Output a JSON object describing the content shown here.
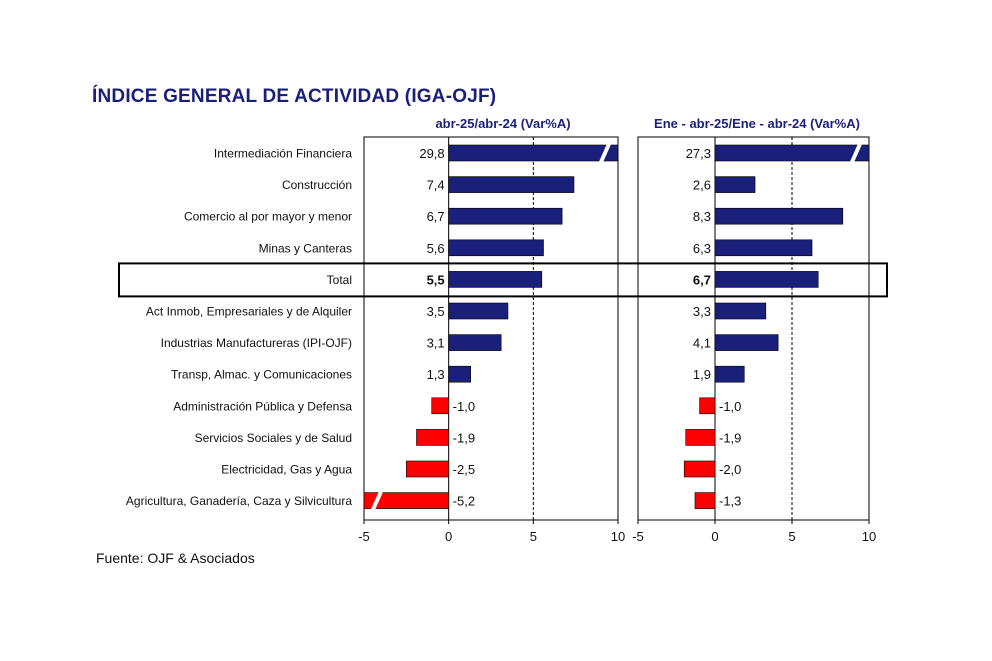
{
  "title": "ÍNDICE GENERAL DE ACTIVIDAD (IGA-OJF)",
  "source": "Fuente: OJF & Asociados",
  "colors": {
    "positive": "#1a1f7a",
    "negative": "#ff0000",
    "title": "#1a1f7a"
  },
  "chart_data": [
    {
      "type": "bar",
      "orientation": "horizontal",
      "title": "abr-25/abr-24  (Var%A)",
      "categories": [
        "Intermediación Financiera",
        "Construcción",
        "Comercio al por mayor y menor",
        "Minas y Canteras",
        "Total",
        "Act Inmob, Empresariales y de Alquiler",
        "Industrias Manufactureras (IPI-OJF)",
        "Transp, Almac. y Comunicaciones",
        "Administración Pública y Defensa",
        "Servicios Sociales y de Salud",
        "Electricidad, Gas y Agua",
        "Agricultura, Ganadería, Caza y Silvicultura"
      ],
      "values": [
        29.8,
        7.4,
        6.7,
        5.6,
        5.5,
        3.5,
        3.1,
        1.3,
        -1.0,
        -1.9,
        -2.5,
        -5.2
      ],
      "value_labels": [
        "29,8",
        "7,4",
        "6,7",
        "5,6",
        "5,5",
        "3,5",
        "3,1",
        "1,3",
        "-1,0",
        "-1,9",
        "-2,5",
        "-5,2"
      ],
      "xlim": [
        -5,
        10
      ],
      "xticks": [
        -5,
        0,
        5,
        10
      ],
      "xtick_labels": [
        "-5",
        "0",
        "5",
        "10"
      ],
      "reference_line": 5,
      "highlight_category": "Total"
    },
    {
      "type": "bar",
      "orientation": "horizontal",
      "title": "Ene - abr-25/Ene - abr-24  (Var%A)",
      "categories": [
        "Intermediación Financiera",
        "Construcción",
        "Comercio al por mayor y menor",
        "Minas y Canteras",
        "Total",
        "Act Inmob, Empresariales y de Alquiler",
        "Industrias Manufactureras (IPI-OJF)",
        "Transp, Almac. y Comunicaciones",
        "Administración Pública y Defensa",
        "Servicios Sociales y de Salud",
        "Electricidad, Gas y Agua",
        "Agricultura, Ganadería, Caza y Silvicultura"
      ],
      "values": [
        27.3,
        2.6,
        8.3,
        6.3,
        6.7,
        3.3,
        4.1,
        1.9,
        -1.0,
        -1.9,
        -2.0,
        -1.3
      ],
      "value_labels": [
        "27,3",
        "2,6",
        "8,3",
        "6,3",
        "6,7",
        "3,3",
        "4,1",
        "1,9",
        "-1,0",
        "-1,9",
        "-2,0",
        "-1,3"
      ],
      "xlim": [
        -5,
        10
      ],
      "xticks": [
        -5,
        0,
        5,
        10
      ],
      "xtick_labels": [
        "-5",
        "0",
        "5",
        "10"
      ],
      "reference_line": 5,
      "highlight_category": "Total"
    }
  ]
}
